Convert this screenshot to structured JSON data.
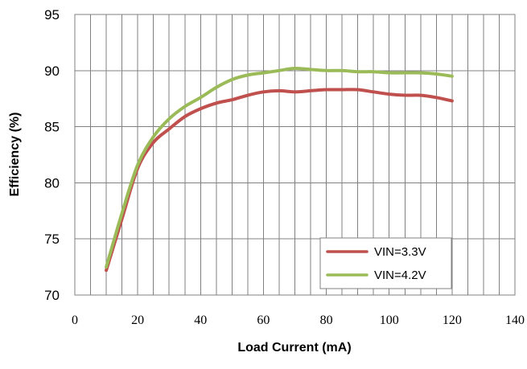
{
  "chart_data": {
    "type": "line",
    "xlabel": "Load Current (mA)",
    "ylabel": "Efficiency (%)",
    "xlim": [
      0,
      140
    ],
    "ylim": [
      70,
      95
    ],
    "x_ticks": [
      0,
      20,
      40,
      60,
      80,
      100,
      120,
      140
    ],
    "y_ticks": [
      70,
      75,
      80,
      85,
      90,
      95
    ],
    "x_minor_step": 5,
    "grid": true,
    "legend_position": "bottom-right",
    "series": [
      {
        "name": "VIN=3.3V",
        "color": "#c0504d",
        "x": [
          10,
          15,
          20,
          25,
          30,
          35,
          40,
          45,
          50,
          55,
          60,
          65,
          70,
          75,
          80,
          85,
          90,
          95,
          100,
          105,
          110,
          115,
          120
        ],
        "y": [
          72.2,
          76.8,
          81.3,
          83.6,
          84.8,
          85.9,
          86.6,
          87.1,
          87.4,
          87.8,
          88.1,
          88.2,
          88.1,
          88.2,
          88.3,
          88.3,
          88.3,
          88.1,
          87.9,
          87.8,
          87.8,
          87.6,
          87.3
        ]
      },
      {
        "name": "VIN=4.2V",
        "color": "#9bbb59",
        "x": [
          10,
          15,
          20,
          25,
          30,
          35,
          40,
          45,
          50,
          55,
          60,
          65,
          70,
          75,
          80,
          85,
          90,
          95,
          100,
          105,
          110,
          115,
          120
        ],
        "y": [
          72.5,
          77.3,
          81.6,
          84.1,
          85.7,
          86.8,
          87.6,
          88.5,
          89.2,
          89.6,
          89.8,
          90.0,
          90.2,
          90.1,
          90.0,
          90.0,
          89.9,
          89.9,
          89.8,
          89.8,
          89.8,
          89.7,
          89.5
        ]
      }
    ]
  }
}
